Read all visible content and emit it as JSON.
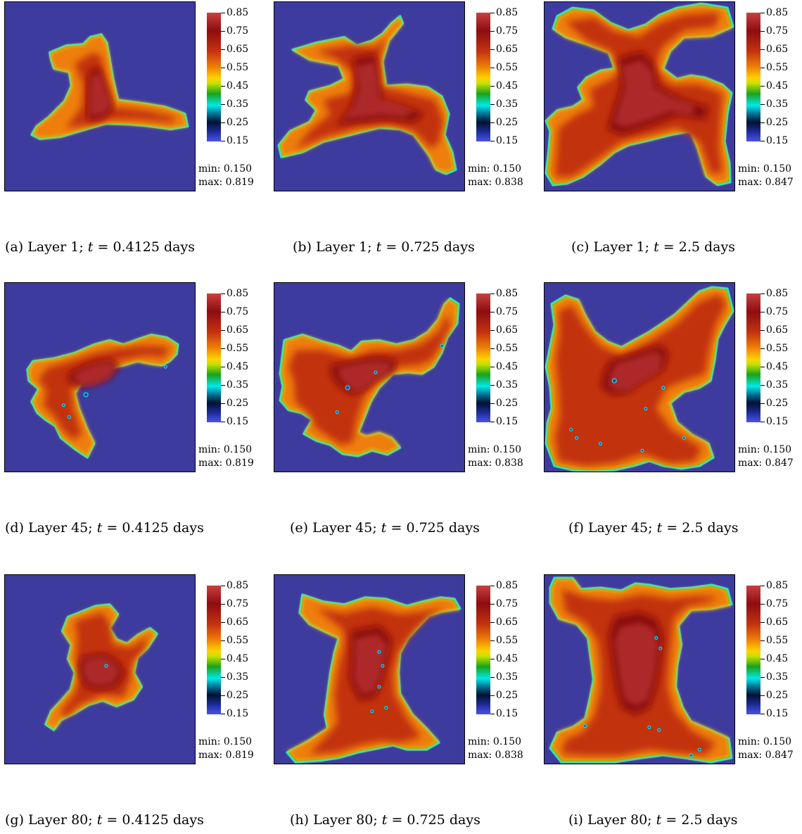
{
  "colorbar": {
    "ticks": [
      "0.85",
      "0.75",
      "0.65",
      "0.55",
      "0.45",
      "0.35",
      "0.25",
      "0.15"
    ],
    "colors": [
      "#c94040",
      "#8c0d10",
      "#c2330f",
      "#ee7f08",
      "#ffd200",
      "#1aa31a",
      "#00e8e8",
      "#001133",
      "#4a52ec"
    ],
    "background": "#3e3b9f"
  },
  "panels": [
    {
      "label": "(a)",
      "layer_text": "Layer 1;",
      "t_symbol": "t",
      "t_value": "= 0.4125 days",
      "min": "min: 0.150",
      "max": "max: 0.819"
    },
    {
      "label": "(b)",
      "layer_text": "Layer 1;",
      "t_symbol": "t",
      "t_value": "= 0.725 days",
      "min": "min: 0.150",
      "max": "max: 0.838"
    },
    {
      "label": "(c)",
      "layer_text": "Layer 1;",
      "t_symbol": "t",
      "t_value": "= 2.5 days",
      "min": "min: 0.150",
      "max": "max: 0.847"
    },
    {
      "label": "(d)",
      "layer_text": "Layer 45;",
      "t_symbol": "t",
      "t_value": "= 0.4125 days",
      "min": "min: 0.150",
      "max": "max: 0.819"
    },
    {
      "label": "(e)",
      "layer_text": "Layer 45;",
      "t_symbol": "t",
      "t_value": "= 0.725 days",
      "min": "min: 0.150",
      "max": "max: 0.838"
    },
    {
      "label": "(f)",
      "layer_text": "Layer 45;",
      "t_symbol": "t",
      "t_value": "= 2.5 days",
      "min": "min: 0.150",
      "max": "max: 0.847"
    },
    {
      "label": "(g)",
      "layer_text": "Layer 80;",
      "t_symbol": "t",
      "t_value": "= 0.4125 days",
      "min": "min: 0.150",
      "max": "max: 0.819"
    },
    {
      "label": "(h)",
      "layer_text": "Layer 80;",
      "t_symbol": "t",
      "t_value": "= 0.725 days",
      "min": "min: 0.150",
      "max": "max: 0.838"
    },
    {
      "label": "(i)",
      "layer_text": "Layer 80;",
      "t_symbol": "t",
      "t_value": "= 2.5 days",
      "min": "min: 0.150",
      "max": "max: 0.847"
    }
  ]
}
